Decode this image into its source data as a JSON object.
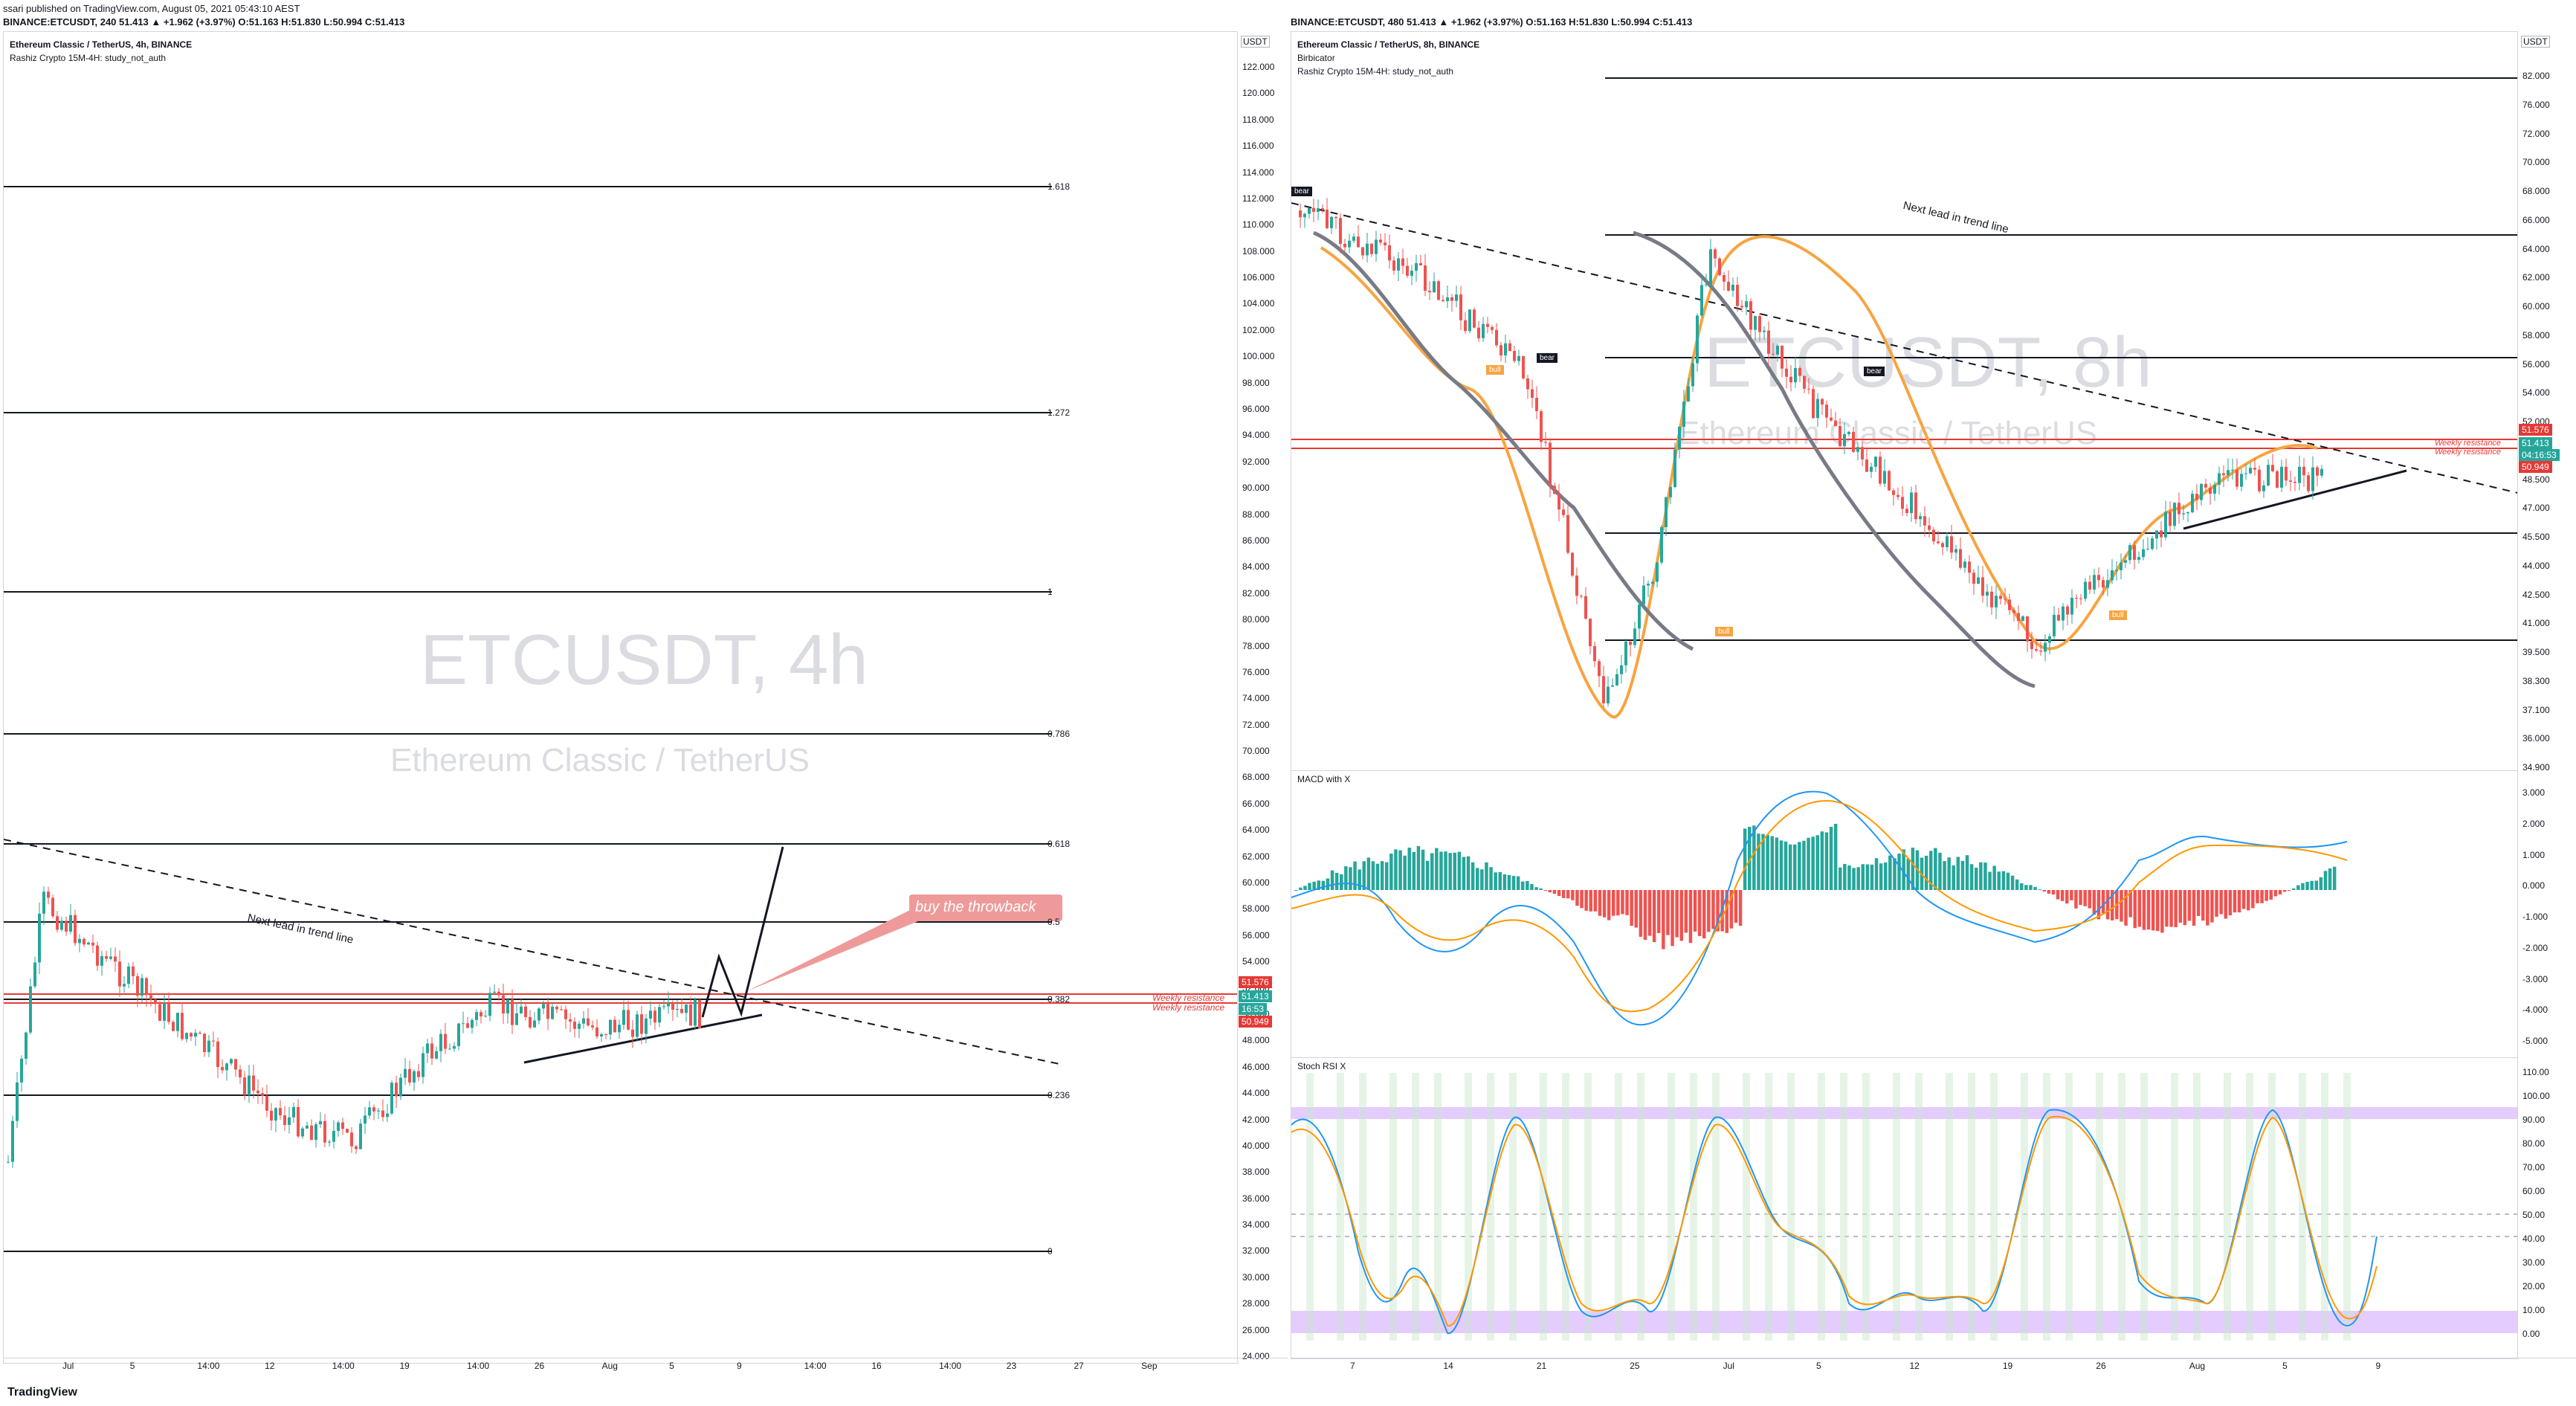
{
  "publish_line": "ssari published on TradingView.com, August 05, 2021 05:43:10 AEST",
  "left": {
    "ohlc_line": "BINANCE:ETCUSDT, 240 51.413 ▲ +1.962 (+3.97%) O:51.163 H:51.830 L:50.994 C:51.413",
    "title": "Ethereum Classic / TetherUS, 4h, BINANCE",
    "indicator": "Rashiz Crypto 15M-4H: study_not_auth",
    "watermark_symbol": "ETCUSDT, 4h",
    "watermark_name": "Ethereum Classic / TetherUS",
    "currency": "USDT",
    "price_ticks": [
      "122.000",
      "120.000",
      "118.000",
      "116.000",
      "114.000",
      "112.000",
      "110.000",
      "108.000",
      "106.000",
      "104.000",
      "102.000",
      "100.000",
      "98.000",
      "96.000",
      "94.000",
      "92.000",
      "90.000",
      "88.000",
      "86.000",
      "84.000",
      "82.000",
      "80.000",
      "78.000",
      "76.000",
      "74.000",
      "72.000",
      "70.000",
      "68.000",
      "66.000",
      "64.000",
      "62.000",
      "60.000",
      "58.000",
      "56.000",
      "54.000",
      "52.000",
      "50.000",
      "48.000",
      "46.000",
      "44.000",
      "42.000",
      "40.000",
      "38.000",
      "36.000",
      "34.000",
      "32.000",
      "30.000",
      "28.000",
      "26.000",
      "24.000"
    ],
    "fib_levels": [
      "1.618",
      "1.272",
      "1",
      "0.786",
      "0.618",
      "0.5",
      "0.382",
      "0.236",
      "0"
    ],
    "time_ticks": [
      "Jul",
      "5",
      "14:00",
      "12",
      "14:00",
      "19",
      "14:00",
      "26",
      "Aug",
      "5",
      "9",
      "14:00",
      "16",
      "14:00",
      "23",
      "27",
      "Sep"
    ],
    "trendline_label": "Next lead in trend line",
    "callout": "buy the throwback",
    "weekly_resistance_1": "Weekly resistance",
    "weekly_resistance_2": "Weekly resistance",
    "price_badges": {
      "upper": "51.576",
      "current": "51.413",
      "timer": "16:53",
      "lower": "50.949"
    }
  },
  "right": {
    "ohlc_line": "BINANCE:ETCUSDT, 480 51.413 ▲ +1.962 (+3.97%) O:51.163 H:51.830 L:50.994 C:51.413",
    "title": "Ethereum Classic / TetherUS, 8h, BINANCE",
    "indicator_1": "Birbicator",
    "indicator_2": "Rashiz Crypto 15M-4H: study_not_auth",
    "watermark_symbol": "ETCUSDT, 8h",
    "watermark_name": "Ethereum Classic / TetherUS",
    "currency": "USDT",
    "price_ticks": [
      "82.000",
      "76.000",
      "72.000",
      "70.000",
      "68.000",
      "66.000",
      "64.000",
      "62.000",
      "60.000",
      "58.000",
      "56.000",
      "54.000",
      "52.000",
      "50.000",
      "48.500",
      "47.000",
      "45.500",
      "44.000",
      "42.500",
      "41.000",
      "39.500",
      "38.300",
      "37.100",
      "36.000",
      "34.900"
    ],
    "trendline_label": "Next lead in trend line",
    "weekly_resistance_1": "Weekly resistance",
    "weekly_resistance_2": "Weekly resistance",
    "price_badges": {
      "upper": "51.576",
      "current": "51.413",
      "timer": "04:16:53",
      "lower": "50.949"
    },
    "signal_labels": {
      "bear": "bear",
      "bull": "bull"
    },
    "macd_title": "MACD with X",
    "macd_ticks": [
      "3.000",
      "2.000",
      "1.000",
      "0.000",
      "-1.000",
      "-2.000",
      "-3.000",
      "-4.000",
      "-5.000"
    ],
    "stoch_title": "Stoch RSI X",
    "stoch_ticks": [
      "110.00",
      "100.00",
      "90.00",
      "80.00",
      "70.00",
      "60.00",
      "50.00",
      "40.00",
      "30.00",
      "20.00",
      "10.00",
      "0.00"
    ],
    "time_ticks": [
      "7",
      "14",
      "21",
      "25",
      "Jul",
      "5",
      "12",
      "19",
      "26",
      "Aug",
      "5",
      "9"
    ]
  },
  "footer_logo": "TradingView",
  "colors": {
    "up": "#26a69a",
    "down": "#ef5350",
    "weekly": "#e53935",
    "ma_gray": "#787b86",
    "ma_orange": "#f7a440",
    "macd_blue": "#2196f3",
    "macd_orange": "#ff9800",
    "stoch_band": "#d9b6ff",
    "callout": "#ef9a9a"
  }
}
